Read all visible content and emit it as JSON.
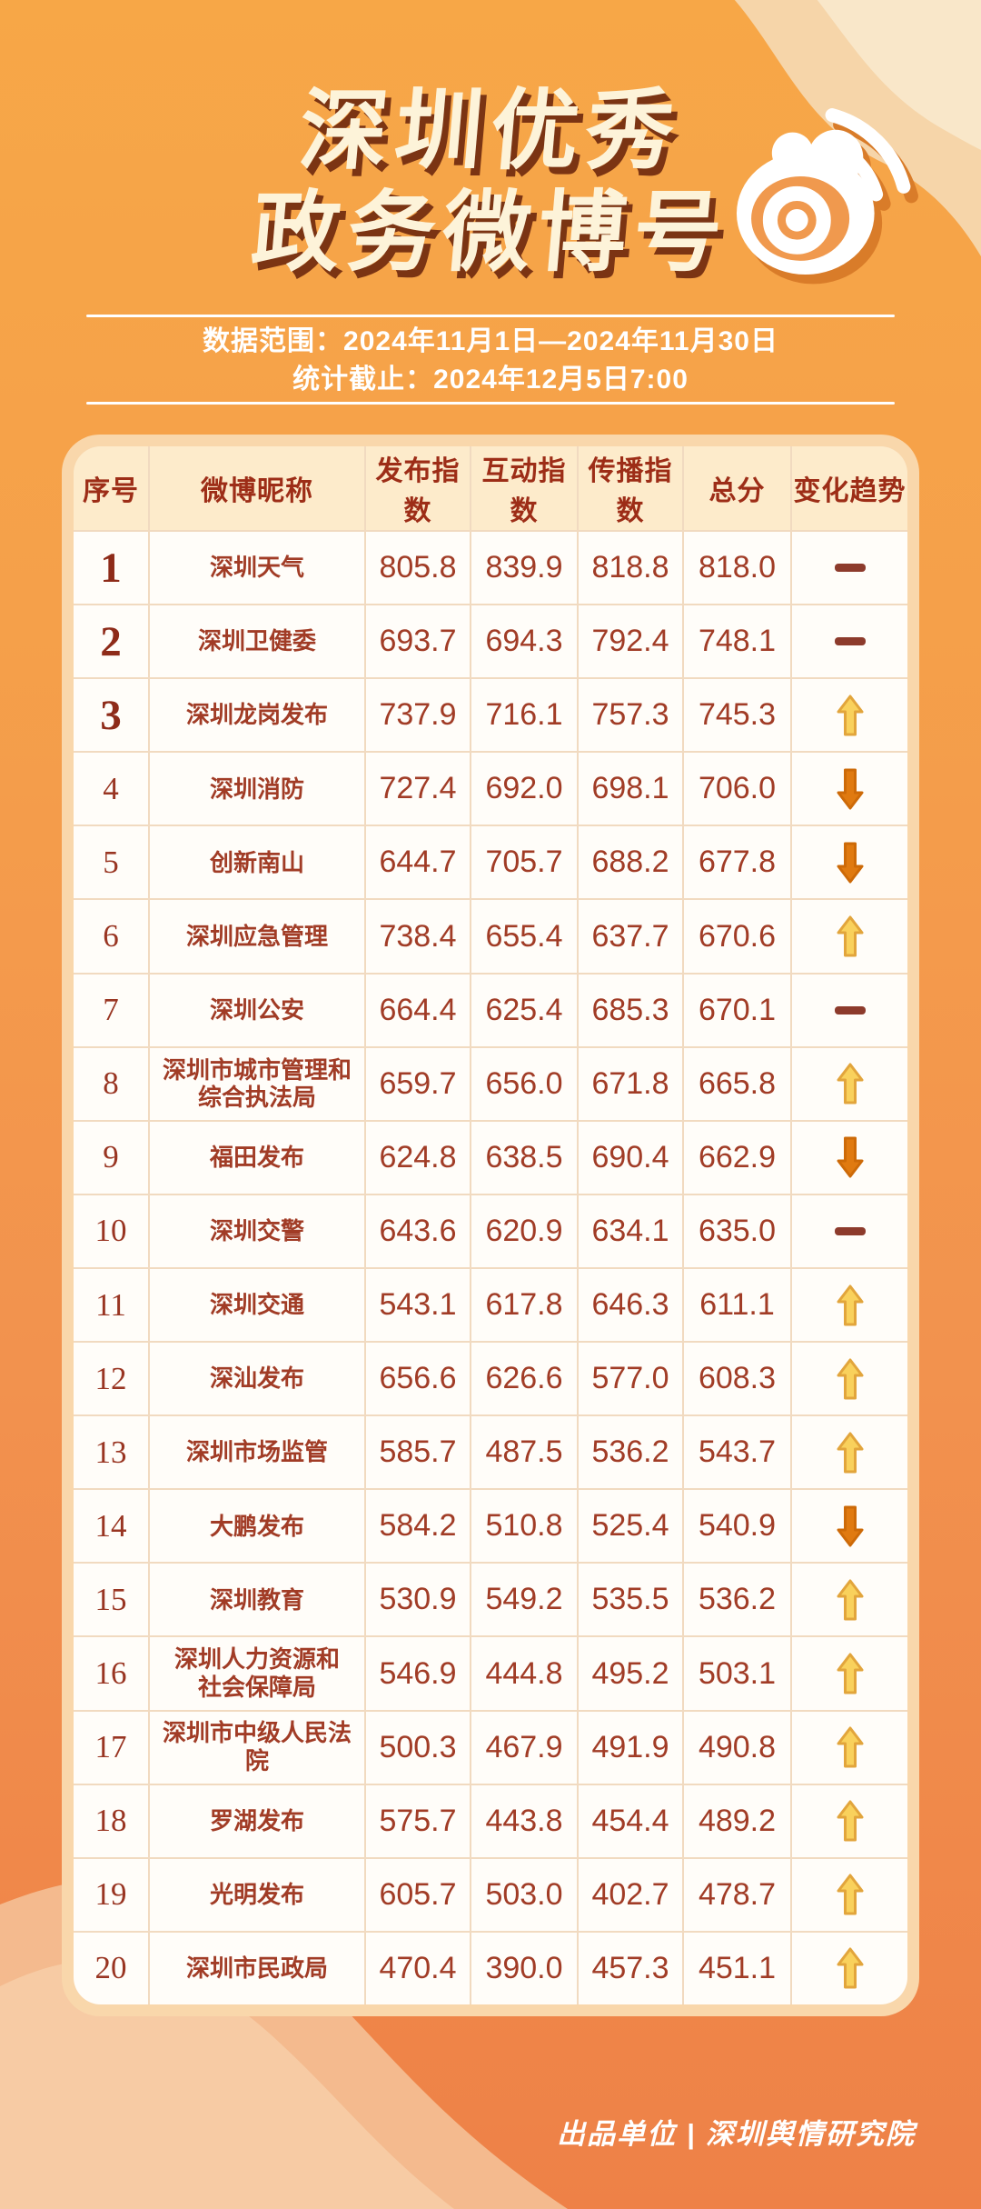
{
  "poster": {
    "title_line1": "深圳优秀",
    "title_line2": "政务微博号",
    "date_range": "数据范围：2024年11月1日—2024年11月30日",
    "stats_deadline": "统计截止：2024年12月5日7:00",
    "footer": "出品单位 | 深圳舆情研究院"
  },
  "colors": {
    "bg_top": "#f7a747",
    "bg_bottom": "#ee8147",
    "title_text": "#fdf3d9",
    "title_shadow": "#7b3413",
    "card_border": "#f9d7ab",
    "header_bg": "#fdebcb",
    "header_text": "#9d2d17",
    "cell_bg": "#fffdf9",
    "cell_text": "#a13c26",
    "up_arrow": "#f9d15c",
    "up_arrow_edge": "#e2a53c",
    "down_arrow": "#e07a10",
    "flat_dash": "#8d3b2c"
  },
  "chart_data": {
    "type": "table",
    "title": "深圳优秀政务微博号",
    "columns": [
      "序号",
      "微博昵称",
      "发布指数",
      "互动指数",
      "传播指数",
      "总分",
      "变化趋势"
    ],
    "trend_legend": {
      "up": "rank-up-arrow",
      "down": "rank-down-arrow",
      "flat": "no-change-dash"
    },
    "rows": [
      {
        "rank": "1",
        "name": "深圳天气",
        "publish_index": "805.8",
        "interaction_index": "839.9",
        "spread_index": "818.8",
        "total_score": "818.0",
        "trend": "flat"
      },
      {
        "rank": "2",
        "name": "深圳卫健委",
        "publish_index": "693.7",
        "interaction_index": "694.3",
        "spread_index": "792.4",
        "total_score": "748.1",
        "trend": "flat"
      },
      {
        "rank": "3",
        "name": "深圳龙岗发布",
        "publish_index": "737.9",
        "interaction_index": "716.1",
        "spread_index": "757.3",
        "total_score": "745.3",
        "trend": "up"
      },
      {
        "rank": "4",
        "name": "深圳消防",
        "publish_index": "727.4",
        "interaction_index": "692.0",
        "spread_index": "698.1",
        "total_score": "706.0",
        "trend": "down"
      },
      {
        "rank": "5",
        "name": "创新南山",
        "publish_index": "644.7",
        "interaction_index": "705.7",
        "spread_index": "688.2",
        "total_score": "677.8",
        "trend": "down"
      },
      {
        "rank": "6",
        "name": "深圳应急管理",
        "publish_index": "738.4",
        "interaction_index": "655.4",
        "spread_index": "637.7",
        "total_score": "670.6",
        "trend": "up"
      },
      {
        "rank": "7",
        "name": "深圳公安",
        "publish_index": "664.4",
        "interaction_index": "625.4",
        "spread_index": "685.3",
        "total_score": "670.1",
        "trend": "flat"
      },
      {
        "rank": "8",
        "name": "深圳市城市管理和\n综合执法局",
        "publish_index": "659.7",
        "interaction_index": "656.0",
        "spread_index": "671.8",
        "total_score": "665.8",
        "trend": "up"
      },
      {
        "rank": "9",
        "name": "福田发布",
        "publish_index": "624.8",
        "interaction_index": "638.5",
        "spread_index": "690.4",
        "total_score": "662.9",
        "trend": "down"
      },
      {
        "rank": "10",
        "name": "深圳交警",
        "publish_index": "643.6",
        "interaction_index": "620.9",
        "spread_index": "634.1",
        "total_score": "635.0",
        "trend": "flat"
      },
      {
        "rank": "11",
        "name": "深圳交通",
        "publish_index": "543.1",
        "interaction_index": "617.8",
        "spread_index": "646.3",
        "total_score": "611.1",
        "trend": "up"
      },
      {
        "rank": "12",
        "name": "深汕发布",
        "publish_index": "656.6",
        "interaction_index": "626.6",
        "spread_index": "577.0",
        "total_score": "608.3",
        "trend": "up"
      },
      {
        "rank": "13",
        "name": "深圳市场监管",
        "publish_index": "585.7",
        "interaction_index": "487.5",
        "spread_index": "536.2",
        "total_score": "543.7",
        "trend": "up"
      },
      {
        "rank": "14",
        "name": "大鹏发布",
        "publish_index": "584.2",
        "interaction_index": "510.8",
        "spread_index": "525.4",
        "total_score": "540.9",
        "trend": "down"
      },
      {
        "rank": "15",
        "name": "深圳教育",
        "publish_index": "530.9",
        "interaction_index": "549.2",
        "spread_index": "535.5",
        "total_score": "536.2",
        "trend": "up"
      },
      {
        "rank": "16",
        "name": "深圳人力资源和\n社会保障局",
        "publish_index": "546.9",
        "interaction_index": "444.8",
        "spread_index": "495.2",
        "total_score": "503.1",
        "trend": "up"
      },
      {
        "rank": "17",
        "name": "深圳市中级人民法院",
        "publish_index": "500.3",
        "interaction_index": "467.9",
        "spread_index": "491.9",
        "total_score": "490.8",
        "trend": "up"
      },
      {
        "rank": "18",
        "name": "罗湖发布",
        "publish_index": "575.7",
        "interaction_index": "443.8",
        "spread_index": "454.4",
        "total_score": "489.2",
        "trend": "up"
      },
      {
        "rank": "19",
        "name": "光明发布",
        "publish_index": "605.7",
        "interaction_index": "503.0",
        "spread_index": "402.7",
        "total_score": "478.7",
        "trend": "up"
      },
      {
        "rank": "20",
        "name": "深圳市民政局",
        "publish_index": "470.4",
        "interaction_index": "390.0",
        "spread_index": "457.3",
        "total_score": "451.1",
        "trend": "up"
      }
    ]
  }
}
